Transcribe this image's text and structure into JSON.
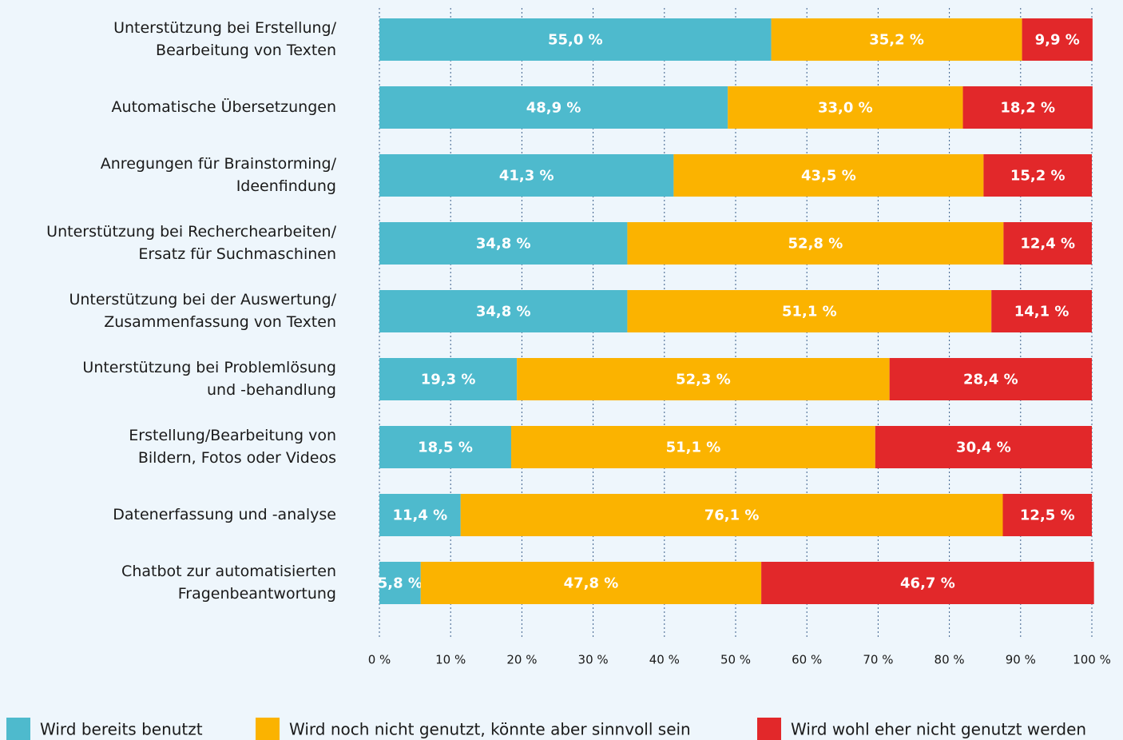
{
  "chart_data": {
    "type": "stacked_barh",
    "categories": [
      [
        "Unterstützung bei Erstellung/",
        "Bearbeitung von Texten"
      ],
      [
        "Automatische Übersetzungen"
      ],
      [
        "Anregungen für Brainstorming/",
        "Ideenfindung"
      ],
      [
        "Unterstützung bei Recherchearbeiten/",
        "Ersatz für Suchmaschinen"
      ],
      [
        "Unterstützung bei der Auswertung/",
        "Zusammenfassung von Texten"
      ],
      [
        "Unterstützung bei Problemlösung",
        "und -behandlung"
      ],
      [
        "Erstellung/Bearbeitung von",
        "Bildern, Fotos oder Videos"
      ],
      [
        "Datenerfassung und -analyse"
      ],
      [
        "Chatbot zur automatisierten",
        "Fragenbeantwortung"
      ]
    ],
    "series": [
      {
        "name": "Wird bereits benutzt",
        "color": "#4ebacd",
        "values": [
          55.0,
          48.9,
          41.3,
          34.8,
          34.8,
          19.3,
          18.5,
          11.4,
          5.8
        ],
        "value_labels": [
          "55,0 %",
          "48,9 %",
          "41,3 %",
          "34,8 %",
          "34,8 %",
          "19,3 %",
          "18,5 %",
          "11,4 %",
          "5,8 %"
        ]
      },
      {
        "name": "Wird noch nicht genutzt, könnte aber sinnvoll sein",
        "color": "#fbb300",
        "values": [
          35.2,
          33.0,
          43.5,
          52.8,
          51.1,
          52.3,
          51.1,
          76.1,
          47.8
        ],
        "value_labels": [
          "35,2 %",
          "33,0 %",
          "43,5 %",
          "52,8 %",
          "51,1 %",
          "52,3 %",
          "51,1 %",
          "76,1 %",
          "47,8 %"
        ]
      },
      {
        "name": "Wird wohl eher nicht genutzt werden",
        "color": "#e2282a",
        "values": [
          9.9,
          18.2,
          15.2,
          12.4,
          14.1,
          28.4,
          30.4,
          12.5,
          46.7
        ],
        "value_labels": [
          "9,9 %",
          "18,2 %",
          "15,2 %",
          "12,4 %",
          "14,1 %",
          "28,4 %",
          "30,4 %",
          "12,5 %",
          "46,7 %"
        ]
      }
    ],
    "xlim": [
      0,
      100
    ],
    "xticks": [
      {
        "value": 0,
        "label": "0 %"
      },
      {
        "value": 10,
        "label": "10 %"
      },
      {
        "value": 20,
        "label": "20 %"
      },
      {
        "value": 30,
        "label": "30 %"
      },
      {
        "value": 40,
        "label": "40 %"
      },
      {
        "value": 50,
        "label": "50 %"
      },
      {
        "value": 60,
        "label": "60 %"
      },
      {
        "value": 70,
        "label": "70 %"
      },
      {
        "value": 80,
        "label": "80 %"
      },
      {
        "value": 90,
        "label": "90 %"
      },
      {
        "value": 100,
        "label": "100 %"
      }
    ],
    "grid": true
  }
}
